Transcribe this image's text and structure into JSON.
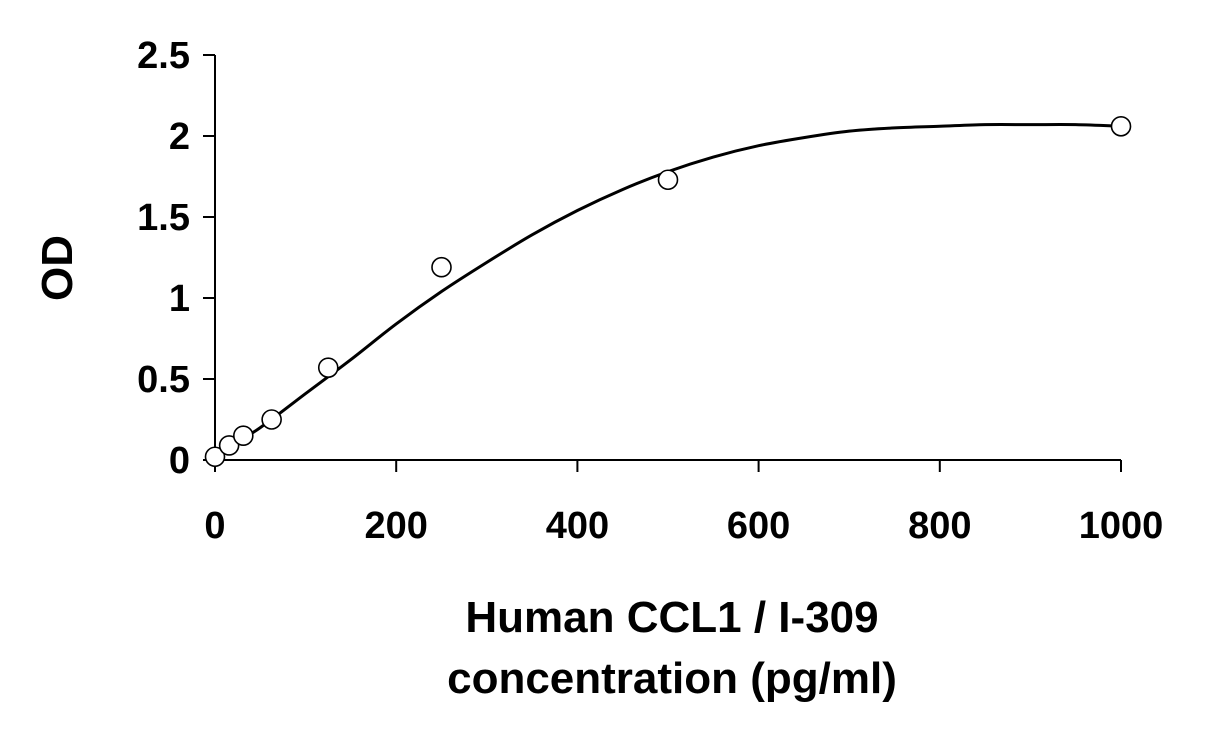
{
  "chart_data": {
    "type": "scatter",
    "title": "",
    "xlabel_lines": [
      "Human CCL1 / I-309",
      "concentration (pg/ml)"
    ],
    "ylabel": "OD",
    "xlim": [
      0,
      1000
    ],
    "ylim": [
      0,
      2.5
    ],
    "x_ticks": [
      0,
      200,
      400,
      600,
      800,
      1000
    ],
    "x_tick_labels": [
      "0",
      "200",
      "400",
      "600",
      "800",
      "1000"
    ],
    "y_ticks": [
      0,
      0.5,
      1,
      1.5,
      2,
      2.5
    ],
    "y_tick_labels": [
      "0",
      "0.5",
      "1",
      "1.5",
      "2",
      "2.5"
    ],
    "grid": false,
    "legend": "none",
    "series": [
      {
        "marker": "open-circle",
        "x": [
          0,
          15.6,
          31.25,
          62.5,
          125,
          250,
          500,
          1000
        ],
        "y": [
          0.02,
          0.09,
          0.15,
          0.25,
          0.57,
          1.19,
          1.73,
          2.06
        ]
      }
    ],
    "fit_curve": {
      "type": "line",
      "x": [
        0,
        50,
        100,
        150,
        200,
        250,
        300,
        350,
        400,
        450,
        500,
        550,
        600,
        650,
        700,
        750,
        800,
        850,
        900,
        950,
        1000
      ],
      "y": [
        0.02,
        0.2,
        0.41,
        0.62,
        0.84,
        1.04,
        1.22,
        1.39,
        1.54,
        1.67,
        1.78,
        1.87,
        1.94,
        1.99,
        2.03,
        2.05,
        2.06,
        2.07,
        2.07,
        2.07,
        2.06
      ]
    },
    "colors": {
      "axis": "#000000",
      "marker_stroke": "#000000",
      "marker_fill": "#ffffff",
      "curve": "#000000"
    }
  }
}
